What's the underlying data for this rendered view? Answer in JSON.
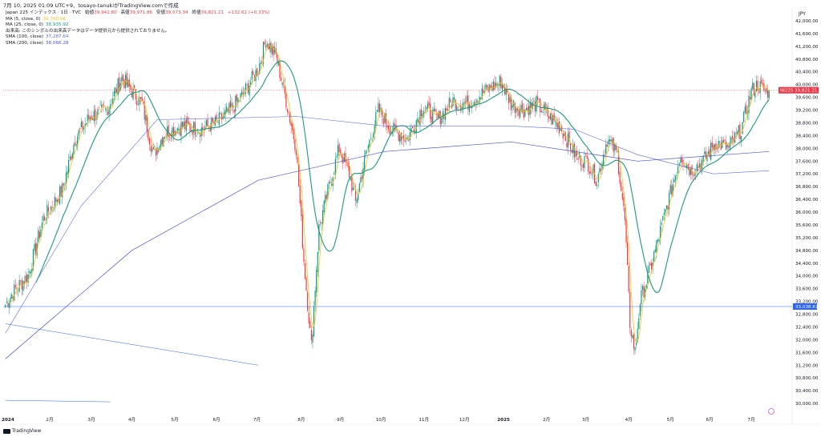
{
  "header": {
    "title": "7月 10, 2025 01:09 UTC+9、tosayo-tanukiがTradingView.comで作成"
  },
  "legend": {
    "symbol": "Japan 225 インデックス · 1日 · TVC",
    "o_label": "始値",
    "o_val": "39,942.80",
    "h_label": "高値",
    "h_val": "39,971.86",
    "l_label": "安値",
    "l_val": "39,573.34",
    "c_label": "終値",
    "c_val": "39,821.21",
    "change": "+132.62 (+0.33%)",
    "ma5_label": "MA (5, close, 0)",
    "ma5_val": "39,708.08",
    "ma25_label": "MA (25, close, 0)",
    "ma25_val": "38,935.92",
    "vol_label": "出来高: このシンボルの出来高データはデータ提供元から提供されておりません。",
    "sma100_label": "SMA (100, close)",
    "sma100_val": "37,287.64",
    "sma200_label": "SMA (200, close)",
    "sma200_val": "38,066.28"
  },
  "currency": "JPY",
  "footer": {
    "brand": "TradingView"
  },
  "colors": {
    "up": "#089981",
    "down": "#f23645",
    "ma5": "#f5c518",
    "ma25": "#1b9a7c",
    "sma100": "#5a6be8",
    "sma200": "#4a55d4",
    "hline": "#2962ff"
  },
  "price_label": {
    "name": "NI225",
    "value": "39,821.21"
  },
  "hline_label": "33,038.67",
  "chart_data": {
    "type": "candlestick",
    "ylim": [
      29600,
      42400
    ],
    "y_ticks": [
      30000,
      30400,
      30800,
      31200,
      31600,
      32000,
      32400,
      32800,
      33200,
      33600,
      34000,
      34400,
      34800,
      35200,
      35600,
      36000,
      36400,
      36800,
      37200,
      37600,
      38000,
      38400,
      38800,
      39200,
      39600,
      40000,
      40400,
      40800,
      41200,
      41600,
      42000
    ],
    "y_tick_labels": [
      "30,000.00",
      "30,400.00",
      "30,800.00",
      "31,200.00",
      "31,600.00",
      "32,000.00",
      "32,400.00",
      "32,800.00",
      "33,200.00",
      "33,600.00",
      "34,000.00",
      "34,400.00",
      "34,800.00",
      "35,200.00",
      "35,600.00",
      "36,000.00",
      "36,400.00",
      "36,800.00",
      "37,200.00",
      "37,600.00",
      "38,000.00",
      "38,400.00",
      "38,800.00",
      "39,200.00",
      "39,600.00",
      "40,000.00",
      "40,400.00",
      "40,800.00",
      "41,200.00",
      "41,600.00",
      "42,000.00"
    ],
    "x_labels": [
      "2024",
      "2月",
      "3月",
      "4月",
      "5月",
      "6月",
      "7月",
      "8月",
      "9月",
      "10月",
      "11月",
      "12月",
      "2025",
      "2月",
      "3月",
      "4月",
      "5月",
      "6月",
      "7月"
    ],
    "x_label_bars": [
      2,
      35,
      68,
      100,
      134,
      167,
      199,
      234,
      265,
      297,
      331,
      363,
      394,
      428,
      459,
      493,
      526,
      557,
      590
    ],
    "n_bars": 605,
    "anchors": [
      [
        0,
        33100
      ],
      [
        8,
        33600
      ],
      [
        18,
        34000
      ],
      [
        30,
        35800
      ],
      [
        45,
        36700
      ],
      [
        55,
        38300
      ],
      [
        67,
        39000
      ],
      [
        80,
        39200
      ],
      [
        92,
        40200
      ],
      [
        100,
        39800
      ],
      [
        108,
        39400
      ],
      [
        117,
        37800
      ],
      [
        126,
        38500
      ],
      [
        140,
        38700
      ],
      [
        155,
        38600
      ],
      [
        167,
        38800
      ],
      [
        178,
        39200
      ],
      [
        188,
        39700
      ],
      [
        200,
        40500
      ],
      [
        206,
        41400
      ],
      [
        214,
        40900
      ],
      [
        222,
        39500
      ],
      [
        230,
        38000
      ],
      [
        236,
        34500
      ],
      [
        242,
        31800
      ],
      [
        248,
        35500
      ],
      [
        256,
        36800
      ],
      [
        264,
        38000
      ],
      [
        272,
        37200
      ],
      [
        277,
        36300
      ],
      [
        285,
        37800
      ],
      [
        295,
        39200
      ],
      [
        305,
        38600
      ],
      [
        318,
        38300
      ],
      [
        330,
        39300
      ],
      [
        342,
        38900
      ],
      [
        354,
        39500
      ],
      [
        365,
        39400
      ],
      [
        380,
        39800
      ],
      [
        392,
        40100
      ],
      [
        400,
        39400
      ],
      [
        410,
        39200
      ],
      [
        420,
        39400
      ],
      [
        430,
        39000
      ],
      [
        440,
        38600
      ],
      [
        452,
        37700
      ],
      [
        460,
        37600
      ],
      [
        468,
        37000
      ],
      [
        476,
        38300
      ],
      [
        484,
        37800
      ],
      [
        490,
        35700
      ],
      [
        494,
        32500
      ],
      [
        498,
        31600
      ],
      [
        502,
        33200
      ],
      [
        510,
        34200
      ],
      [
        518,
        35400
      ],
      [
        526,
        36600
      ],
      [
        534,
        37800
      ],
      [
        542,
        37300
      ],
      [
        552,
        37600
      ],
      [
        562,
        38200
      ],
      [
        572,
        38000
      ],
      [
        582,
        38600
      ],
      [
        590,
        39800
      ],
      [
        595,
        40000
      ],
      [
        600,
        39800
      ],
      [
        604,
        39800
      ]
    ],
    "anchors_note": "[bar index, close price]",
    "sma200_points": [
      [
        0,
        31400
      ],
      [
        100,
        34800
      ],
      [
        200,
        37000
      ],
      [
        300,
        37900
      ],
      [
        400,
        38200
      ],
      [
        500,
        37600
      ],
      [
        604,
        37900
      ]
    ],
    "sma100_points": [
      [
        0,
        32200
      ],
      [
        60,
        36200
      ],
      [
        120,
        38900
      ],
      [
        230,
        39000
      ],
      [
        300,
        38700
      ],
      [
        400,
        38700
      ],
      [
        450,
        38600
      ],
      [
        500,
        37800
      ],
      [
        560,
        37200
      ],
      [
        604,
        37300
      ]
    ],
    "trend_line": [
      [
        0,
        32500
      ],
      [
        200,
        31200
      ]
    ],
    "hline_price": 33038.67,
    "last_close": 39821.21,
    "short_line": [
      [
        0,
        30100
      ],
      [
        83,
        30050
      ]
    ]
  }
}
